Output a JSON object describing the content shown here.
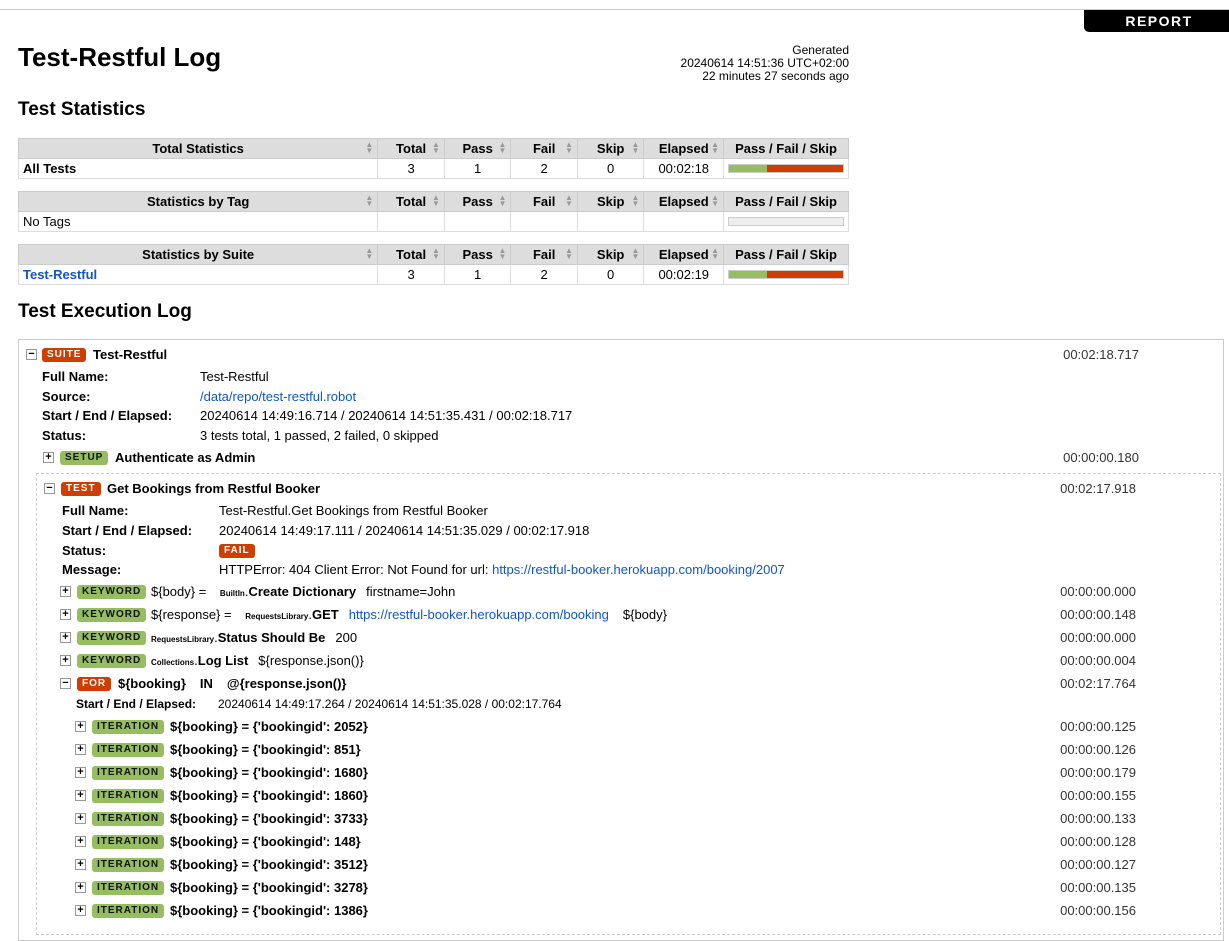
{
  "header": {
    "report_label": "REPORT",
    "title": "Test-Restful Log",
    "generated_label": "Generated",
    "generated_time": "20240614 14:51:36 UTC+02:00",
    "generated_ago": "22 minutes 27 seconds ago"
  },
  "statistics": {
    "heading": "Test Statistics",
    "columns": [
      "Total",
      "Pass",
      "Fail",
      "Skip",
      "Elapsed",
      "Pass / Fail / Skip"
    ],
    "tables": [
      {
        "title": "Total Statistics",
        "rows": [
          {
            "name": "All Tests",
            "total": "3",
            "pass": "1",
            "fail": "2",
            "skip": "0",
            "elapsed": "00:02:18",
            "pass_frac": 0.333,
            "fail_frac": 0.667
          }
        ]
      },
      {
        "title": "Statistics by Tag",
        "rows": [
          {
            "name": "No Tags",
            "total": "",
            "pass": "",
            "fail": "",
            "skip": "",
            "elapsed": "",
            "pass_frac": 0,
            "fail_frac": 0
          }
        ]
      },
      {
        "title": "Statistics by Suite",
        "rows": [
          {
            "name": "Test-Restful",
            "total": "3",
            "pass": "1",
            "fail": "2",
            "skip": "0",
            "elapsed": "00:02:19",
            "pass_frac": 0.333,
            "fail_frac": 0.667,
            "link": true
          }
        ]
      }
    ]
  },
  "log": {
    "heading": "Test Execution Log",
    "suite": {
      "badge": "SUITE",
      "name": "Test-Restful",
      "elapsed": "00:02:18.717",
      "fields": [
        {
          "label": "Full Name:",
          "value": "Test-Restful"
        },
        {
          "label": "Source:",
          "value": "/data/repo/test-restful.robot",
          "link": true
        },
        {
          "label": "Start / End / Elapsed:",
          "value": "20240614 14:49:16.714 / 20240614 14:51:35.431 / 00:02:18.717"
        },
        {
          "label": "Status:",
          "value": "3 tests total, 1 passed, 2 failed, 0 skipped"
        }
      ]
    },
    "setup": {
      "badge": "SETUP",
      "name": "Authenticate as Admin",
      "elapsed": "00:00:00.180"
    },
    "test": {
      "badge": "TEST",
      "name": "Get Bookings from Restful Booker",
      "elapsed": "00:02:17.918",
      "full_name_label": "Full Name:",
      "full_name": "Test-Restful.Get Bookings from Restful Booker",
      "start_label": "Start / End / Elapsed:",
      "start": "20240614 14:49:17.111 / 20240614 14:51:35.029 / 00:02:17.918",
      "status_label": "Status:",
      "status": "FAIL",
      "message_label": "Message:",
      "message": "HTTPError: 404 Client Error: Not Found for url: ",
      "message_url": "https://restful-booker.herokuapp.com/booking/2007"
    },
    "keywords": [
      {
        "badge": "KEYWORD",
        "assign": "${body} = ",
        "lib": "BuiltIn",
        "name": "Create Dictionary",
        "args": "firstname=John",
        "elapsed": "00:00:00.000"
      },
      {
        "badge": "KEYWORD",
        "assign": "${response} = ",
        "lib": "RequestsLibrary",
        "name": "GET",
        "url": "https://restful-booker.herokuapp.com/booking",
        "args": "${body}",
        "elapsed": "00:00:00.148"
      },
      {
        "badge": "KEYWORD",
        "assign": "",
        "lib": "RequestsLibrary",
        "name": "Status Should Be",
        "args": "200",
        "elapsed": "00:00:00.000"
      },
      {
        "badge": "KEYWORD",
        "assign": "",
        "lib": "Collections",
        "name": "Log List",
        "args": "${response.json()}",
        "elapsed": "00:00:00.004"
      }
    ],
    "for": {
      "badge": "FOR",
      "var": "${booking}",
      "in": "IN",
      "list": "@{response.json()}",
      "elapsed": "00:02:17.764",
      "start_label": "Start / End / Elapsed:",
      "start": "20240614 14:49:17.264 / 20240614 14:51:35.028 / 00:02:17.764"
    },
    "iterations": [
      {
        "badge": "ITERATION",
        "text": "${booking} = {'bookingid': 2052}",
        "elapsed": "00:00:00.125"
      },
      {
        "badge": "ITERATION",
        "text": "${booking} = {'bookingid': 851}",
        "elapsed": "00:00:00.126"
      },
      {
        "badge": "ITERATION",
        "text": "${booking} = {'bookingid': 1680}",
        "elapsed": "00:00:00.179"
      },
      {
        "badge": "ITERATION",
        "text": "${booking} = {'bookingid': 1860}",
        "elapsed": "00:00:00.155"
      },
      {
        "badge": "ITERATION",
        "text": "${booking} = {'bookingid': 3733}",
        "elapsed": "00:00:00.133"
      },
      {
        "badge": "ITERATION",
        "text": "${booking} = {'bookingid': 148}",
        "elapsed": "00:00:00.128"
      },
      {
        "badge": "ITERATION",
        "text": "${booking} = {'bookingid': 3512}",
        "elapsed": "00:00:00.127"
      },
      {
        "badge": "ITERATION",
        "text": "${booking} = {'bookingid': 3278}",
        "elapsed": "00:00:00.135"
      },
      {
        "badge": "ITERATION",
        "text": "${booking} = {'bookingid': 1386}",
        "elapsed": "00:00:00.156"
      }
    ]
  },
  "colors": {
    "pass": "#97bd61",
    "fail": "#ce3e01",
    "link": "#1155cc"
  }
}
